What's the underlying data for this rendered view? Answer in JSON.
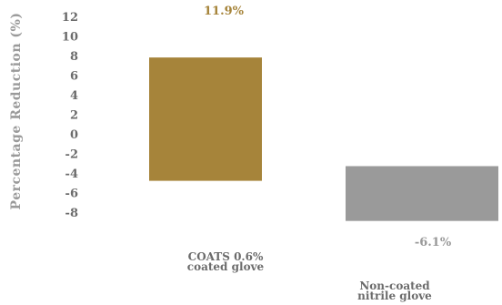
{
  "chart_data": {
    "type": "bar",
    "title": "",
    "ylabel": "Percentage Reduction (%)",
    "xlabel": "",
    "ylim": [
      -8,
      12
    ],
    "yticks": [
      "12",
      "10",
      "8",
      "6",
      "4",
      "2",
      "0",
      "-2",
      "-4",
      "-6",
      "-8"
    ],
    "categories": [
      [
        "COATS 0.6%",
        "coated glove"
      ],
      [
        "Non-coated",
        "nitrile glove"
      ]
    ],
    "values": [
      11.9,
      -6.1
    ],
    "data_labels": [
      "11.9%",
      "-6.1%"
    ],
    "colors": [
      "#a6843a",
      "#9a9a9a"
    ],
    "label_colors": [
      "#a6843a",
      "#9a9a9a"
    ],
    "grid": false,
    "legend": false
  }
}
